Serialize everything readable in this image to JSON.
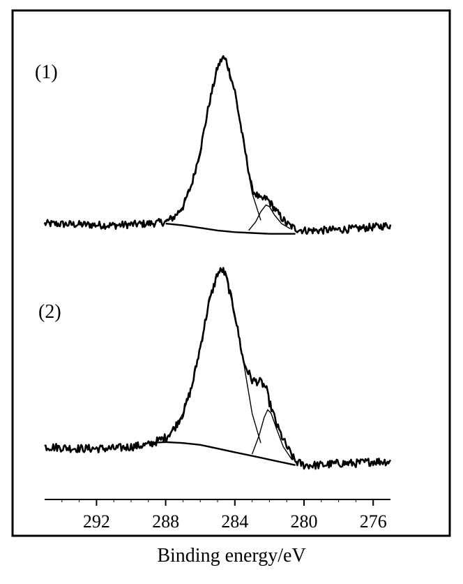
{
  "chart_data": {
    "type": "line",
    "title": "",
    "xlabel": "Binding energy/eV",
    "ylabel": "",
    "x_reversed": true,
    "xlim": [
      295,
      275
    ],
    "x_ticks": [
      292,
      288,
      284,
      280,
      276
    ],
    "y_ticks_visible": false,
    "grid": false,
    "legend": "none",
    "panels": [
      {
        "label": "(1)",
        "series": [
          {
            "role": "measured spectrum",
            "x": [
              295,
              293,
              291,
              289,
              288,
              287.5,
              287,
              286.5,
              286,
              285.5,
              285,
              284.7,
              284.5,
              284,
              283.5,
              283,
              282.5,
              282.2,
              282,
              281.5,
              281,
              280.5,
              280,
              279,
              278,
              277,
              276,
              275
            ],
            "y": [
              0.02,
              0.015,
              0.01,
              0.02,
              0.03,
              0.06,
              0.12,
              0.25,
              0.45,
              0.72,
              0.94,
              1.0,
              0.98,
              0.8,
              0.5,
              0.22,
              0.16,
              0.17,
              0.15,
              0.08,
              0.02,
              -0.01,
              -0.02,
              -0.02,
              -0.015,
              -0.01,
              0.0,
              0.01
            ]
          },
          {
            "role": "main component",
            "x": [
              288,
              287.5,
              287,
              286.5,
              286,
              285.5,
              285,
              284.7,
              284.5,
              284,
              283.5,
              283,
              282.5
            ],
            "y": [
              0.03,
              0.06,
              0.12,
              0.25,
              0.45,
              0.72,
              0.94,
              1.0,
              0.98,
              0.8,
              0.5,
              0.2,
              0.04
            ]
          },
          {
            "role": "secondary component",
            "x": [
              283.2,
              282.8,
              282.5,
              282.2,
              282.0,
              281.7,
              281.3,
              280.8
            ],
            "y": [
              -0.02,
              0.03,
              0.09,
              0.13,
              0.12,
              0.07,
              0.02,
              -0.01
            ]
          },
          {
            "role": "background",
            "x": [
              288,
              287,
              286,
              285,
              284,
              283,
              282,
              281,
              280.5
            ],
            "y": [
              0.02,
              0.01,
              -0.005,
              -0.02,
              -0.03,
              -0.035,
              -0.04,
              -0.04,
              -0.04
            ]
          }
        ]
      },
      {
        "label": "(2)",
        "series": [
          {
            "role": "measured spectrum",
            "x": [
              295,
              293,
              291,
              289,
              288,
              287.5,
              287,
              286.5,
              286,
              285.5,
              285,
              284.7,
              284.5,
              284,
              283.5,
              283,
              282.5,
              282.2,
              282,
              281.5,
              281,
              280.5,
              280,
              279,
              278,
              277,
              276,
              275
            ],
            "y": [
              0.04,
              0.03,
              0.03,
              0.05,
              0.09,
              0.14,
              0.22,
              0.36,
              0.58,
              0.82,
              0.98,
              1.0,
              0.96,
              0.76,
              0.5,
              0.4,
              0.39,
              0.36,
              0.28,
              0.14,
              0.04,
              -0.04,
              -0.06,
              -0.06,
              -0.05,
              -0.05,
              -0.04,
              -0.04
            ]
          },
          {
            "role": "main component",
            "x": [
              288,
              287.5,
              287,
              286.5,
              286,
              285.5,
              285,
              284.7,
              284.5,
              284,
              283.5,
              283,
              282.5
            ],
            "y": [
              0.08,
              0.14,
              0.22,
              0.36,
              0.58,
              0.82,
              0.98,
              1.0,
              0.96,
              0.76,
              0.5,
              0.22,
              0.06
            ]
          },
          {
            "role": "secondary component",
            "x": [
              283.0,
              282.6,
              282.3,
              282.1,
              281.9,
              281.6,
              281.2,
              280.7
            ],
            "y": [
              0.0,
              0.1,
              0.2,
              0.24,
              0.22,
              0.14,
              0.04,
              -0.03
            ]
          },
          {
            "role": "background",
            "x": [
              289,
              288,
              287,
              286,
              285,
              284,
              283,
              282,
              281,
              280.5
            ],
            "y": [
              0.06,
              0.065,
              0.06,
              0.05,
              0.03,
              0.01,
              -0.01,
              -0.03,
              -0.05,
              -0.06
            ]
          }
        ]
      }
    ]
  }
}
